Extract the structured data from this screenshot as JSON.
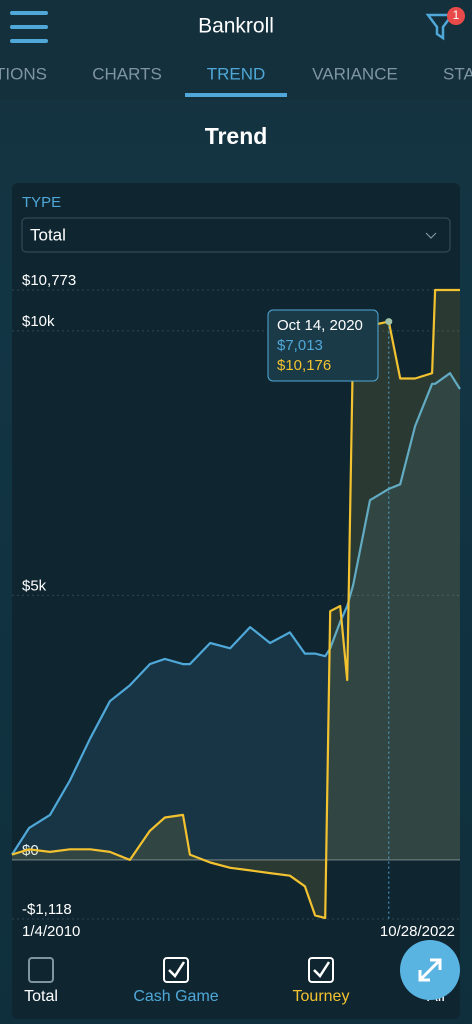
{
  "header": {
    "title": "Bankroll",
    "badge": "1"
  },
  "tabs": [
    "TIONS",
    "CHARTS",
    "TREND",
    "VARIANCE",
    "STA"
  ],
  "section_title": "Trend",
  "type_label": "TYPE",
  "type_value": "Total",
  "chart_data": {
    "type": "line",
    "x": [
      "1/4/2010",
      "7/1/2010",
      "2/5/2011",
      "9/1/2011",
      "4/1/2012",
      "10/23/2012",
      "5/20/2013",
      "12/15/2013",
      "5/20/2014",
      "11/25/2014",
      "2/5/2015",
      "9/5/2015",
      "4/1/2016",
      "10/26/2016",
      "5/22/2017",
      "12/16/2017",
      "5/22/2018",
      "9/5/2018",
      "12/20/2018",
      "2/10/2019",
      "5/26/2019",
      "8/7/2019",
      "10/8/2019",
      "4/1/2020",
      "10/14/2020",
      "2/10/2021",
      "7/16/2021",
      "1/10/2022",
      "2/10/2022",
      "7/16/2022",
      "10/28/2022"
    ],
    "series": [
      {
        "name": "Cash Game",
        "color": "#4fa8d8",
        "values": [
          100,
          600,
          850,
          1500,
          2300,
          3000,
          3300,
          3700,
          3800,
          3700,
          3700,
          4100,
          4000,
          4400,
          4100,
          4300,
          3900,
          3900,
          3850,
          4000,
          4500,
          4800,
          5200,
          6800,
          7013,
          7100,
          8200,
          9000,
          9000,
          9200,
          8900
        ]
      },
      {
        "name": "Tourney",
        "color": "#f2c230",
        "values": [
          100,
          200,
          150,
          200,
          200,
          150,
          0,
          550,
          800,
          850,
          100,
          -50,
          -150,
          -200,
          -250,
          -300,
          -500,
          -1050,
          -1100,
          4700,
          4800,
          3400,
          9900,
          10100,
          10176,
          9100,
          9100,
          9200,
          10773,
          10773,
          10773
        ]
      }
    ],
    "xlim": [
      "1/4/2010",
      "10/28/2022"
    ],
    "xticks": [
      "1/4/2010",
      "10/28/2022"
    ],
    "ylim": [
      -1118,
      10773
    ],
    "yticks": [
      {
        "value": -1118,
        "label": "-$1,118"
      },
      {
        "value": 0,
        "label": "$0"
      },
      {
        "value": 5000,
        "label": "$5k"
      },
      {
        "value": 10000,
        "label": "$10k"
      },
      {
        "value": 10773,
        "label": "$10,773"
      }
    ],
    "grid": true,
    "tooltip": {
      "title": "Oct 14, 2020",
      "lines": [
        "$7,013",
        "$10,176"
      ]
    }
  },
  "toggles": {
    "total": "Total",
    "all": "All"
  }
}
